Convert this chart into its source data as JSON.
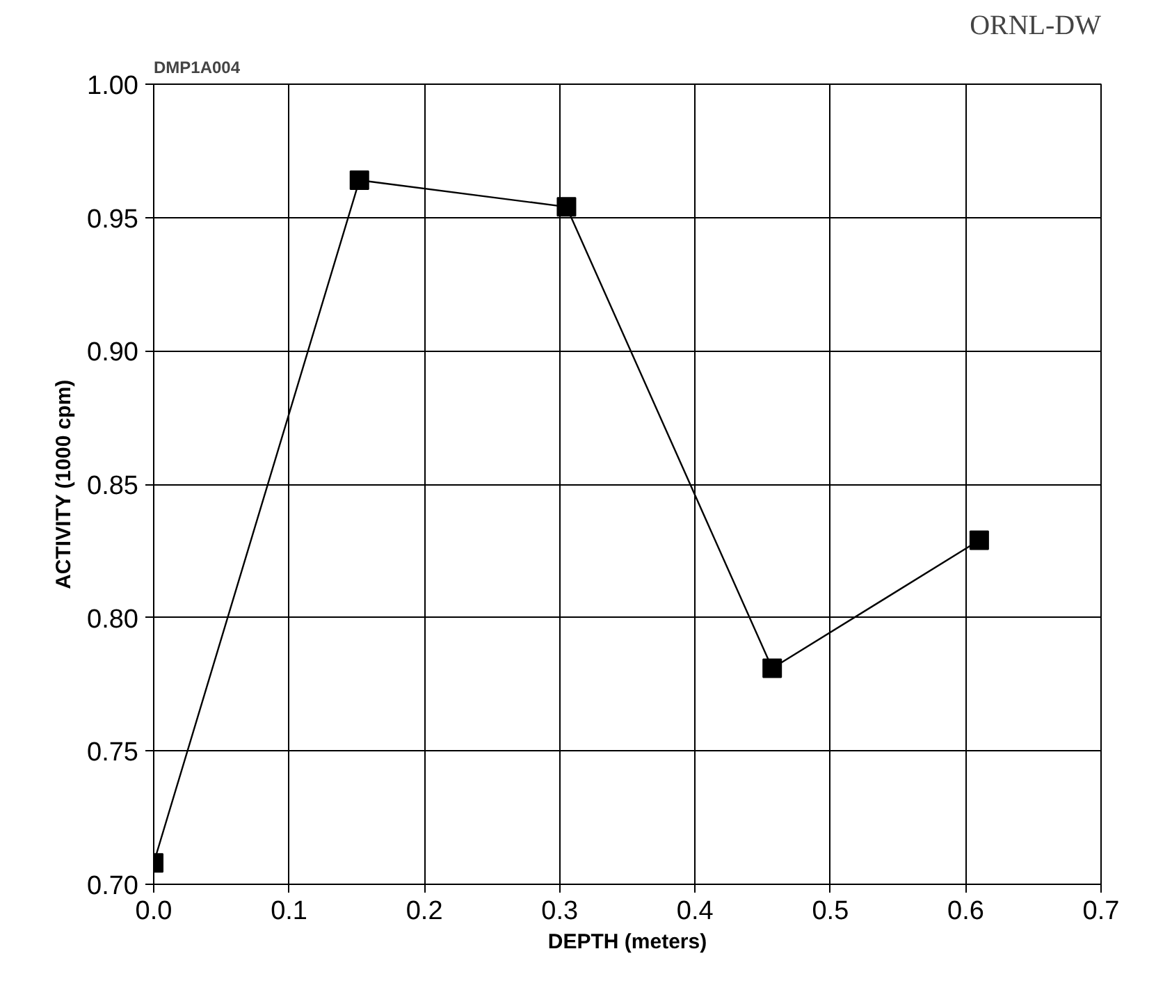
{
  "chart_data": {
    "type": "line",
    "xlabel": "DEPTH (meters)",
    "ylabel": "ACTIVITY (1000 cpm)",
    "annotations": [
      "DMP1A004",
      "ORNL-DW"
    ],
    "x": [
      0.0,
      0.152,
      0.305,
      0.457,
      0.61
    ],
    "series": [
      {
        "color": "#000000",
        "values": [
          0.708,
          0.964,
          0.954,
          0.781,
          0.829
        ]
      }
    ],
    "xlim": [
      0.0,
      0.7
    ],
    "ylim": [
      0.7,
      1.0
    ],
    "xticks": [
      {
        "value": 0.0,
        "label": "0.0"
      },
      {
        "value": 0.1,
        "label": "0.1"
      },
      {
        "value": 0.2,
        "label": "0.2"
      },
      {
        "value": 0.3,
        "label": "0.3"
      },
      {
        "value": 0.4,
        "label": "0.4"
      },
      {
        "value": 0.5,
        "label": "0.5"
      },
      {
        "value": 0.6,
        "label": "0.6"
      },
      {
        "value": 0.7,
        "label": "0.7"
      }
    ],
    "yticks": [
      {
        "value": 0.7,
        "label": "0.70"
      },
      {
        "value": 0.75,
        "label": "0.75"
      },
      {
        "value": 0.8,
        "label": "0.80"
      },
      {
        "value": 0.85,
        "label": "0.85"
      },
      {
        "value": 0.9,
        "label": "0.90"
      },
      {
        "value": 0.95,
        "label": "0.95"
      },
      {
        "value": 1.0,
        "label": "1.00"
      }
    ],
    "grid": true,
    "marker": "square",
    "line_style": "solid"
  }
}
